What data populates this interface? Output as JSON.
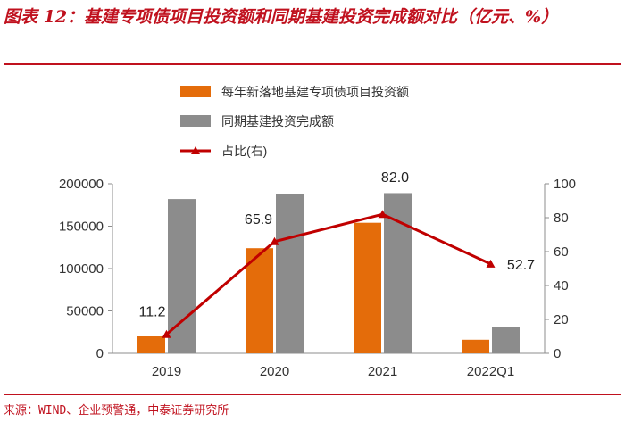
{
  "title": "图表 12：基建专项债项目投资额和同期基建投资完成额对比（亿元、%）",
  "source": "来源：WIND、企业预警通，中泰证券研究所",
  "colors": {
    "accent": "#c0111e",
    "bar1": "#e46c0a",
    "bar2": "#8c8c8c",
    "line": "#c00000"
  },
  "chart_data": {
    "type": "bar",
    "categories": [
      "2019",
      "2020",
      "2021",
      "2022Q1"
    ],
    "series": [
      {
        "name": "每年新落地基建专项债项目投资额",
        "type": "bar",
        "axis": "left",
        "values": [
          20000,
          124000,
          154000,
          16000
        ]
      },
      {
        "name": "同期基建投资完成额",
        "type": "bar",
        "axis": "left",
        "values": [
          182000,
          188000,
          189000,
          31000
        ]
      },
      {
        "name": "占比(右)",
        "type": "line",
        "axis": "right",
        "values": [
          11.2,
          65.9,
          82.0,
          52.7
        ],
        "labels": [
          "11.2",
          "65.9",
          "82.0",
          "52.7"
        ]
      }
    ],
    "y_left": {
      "lim": [
        0,
        200000
      ],
      "ticks": [
        0,
        50000,
        100000,
        150000,
        200000
      ],
      "tick_labels": [
        "0",
        "50000",
        "100000",
        "150000",
        "200000"
      ]
    },
    "y_right": {
      "lim": [
        0,
        100
      ],
      "ticks": [
        0,
        20,
        40,
        60,
        80,
        100
      ],
      "tick_labels": [
        "0",
        "20",
        "40",
        "60",
        "80",
        "100"
      ]
    },
    "legend": "top-left",
    "grid": false
  }
}
